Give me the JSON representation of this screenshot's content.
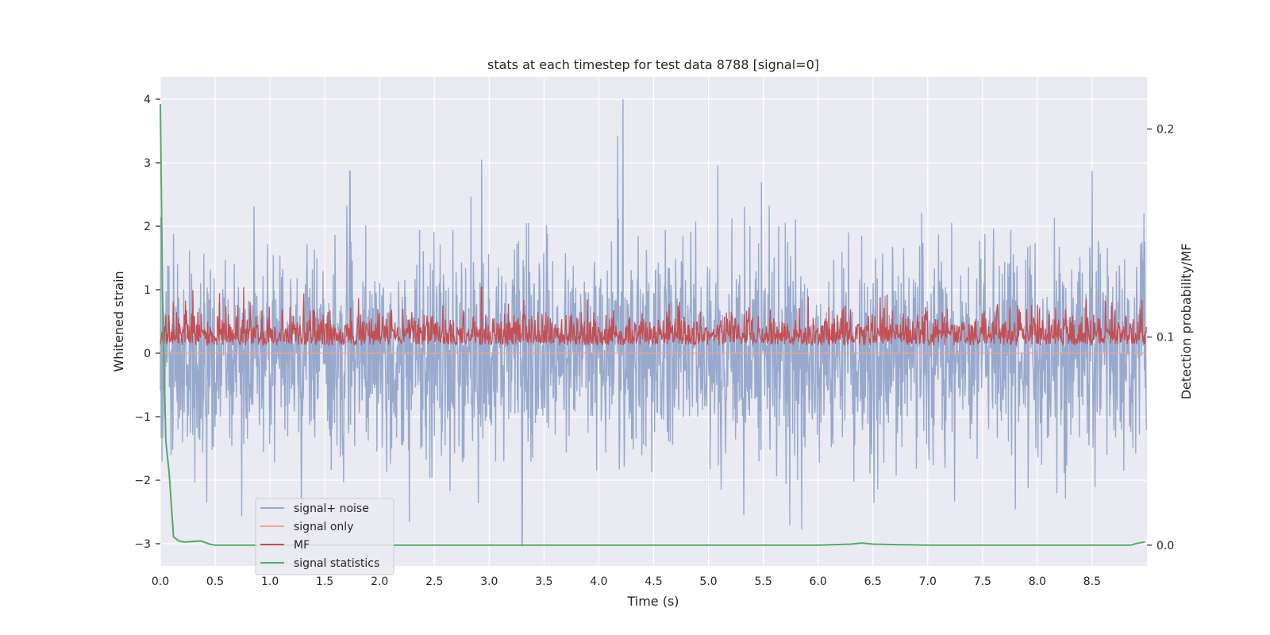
{
  "chart_data": {
    "type": "line",
    "title": "stats at each timestep for test data 8788 [signal=0]",
    "xlabel": "Time (s)",
    "ylabel": "Whitened strain",
    "y2label": "Detection probability/MF",
    "xlim": [
      0.0,
      9.0
    ],
    "ylim": [
      -3.35,
      4.35
    ],
    "y2lim": [
      -0.01,
      0.225
    ],
    "x_ticks": [
      0.0,
      0.5,
      1.0,
      1.5,
      2.0,
      2.5,
      3.0,
      3.5,
      4.0,
      4.5,
      5.0,
      5.5,
      6.0,
      6.5,
      7.0,
      7.5,
      8.0,
      8.5
    ],
    "x_tick_labels": [
      "0.0",
      "0.5",
      "1.0",
      "1.5",
      "2.0",
      "2.5",
      "3.0",
      "3.5",
      "4.0",
      "4.5",
      "5.0",
      "5.5",
      "6.0",
      "6.5",
      "7.0",
      "7.5",
      "8.0",
      "8.5"
    ],
    "y_ticks": [
      -3,
      -2,
      -1,
      0,
      1,
      2,
      3,
      4
    ],
    "y_tick_labels": [
      "−3",
      "−2",
      "−1",
      "0",
      "1",
      "2",
      "3",
      "4"
    ],
    "y2_ticks": [
      0.0,
      0.1,
      0.2
    ],
    "y2_tick_labels": [
      "0.0",
      "0.1",
      "0.2"
    ],
    "grid": true,
    "legend_position": "lower-left",
    "colors": {
      "background": "#eaeaf2",
      "grid": "#ffffff",
      "signal_noise": "#98a9cd",
      "signal_only": "#e8a98f",
      "mf": "#c44e52",
      "signal_statistics": "#55a868"
    },
    "series": [
      {
        "name": "signal+ noise",
        "axis": "left",
        "description": "noise-like whitened strain, roughly within [-3, 4] with peak ~4.0 near t=4.22 s and trough ~-3.0 near t=3.3 s",
        "peaks": [
          [
            4.22,
            4.0
          ],
          [
            4.17,
            3.42
          ],
          [
            2.93,
            3.05
          ],
          [
            8.5,
            2.87
          ],
          [
            1.73,
            2.87
          ],
          [
            3.3,
            -3.03
          ],
          [
            5.85,
            -2.78
          ],
          [
            2.27,
            -2.66
          ]
        ]
      },
      {
        "name": "signal only",
        "axis": "left",
        "values_description": "zero signal (signal=0), flat at 0"
      },
      {
        "name": "MF",
        "axis": "right",
        "description": "matched filter output fluctuating between ~0.095 and ~0.125 on the right axis, spike ~0.124 near t=2.93 s",
        "baseline": 0.1,
        "range": [
          0.095,
          0.124
        ]
      },
      {
        "name": "signal statistics",
        "axis": "right",
        "x": [
          0.0,
          0.02,
          0.05,
          0.08,
          0.12,
          0.17,
          0.22,
          0.3,
          0.37,
          0.45,
          0.5,
          0.6,
          1.0,
          2.0,
          3.0,
          4.0,
          5.0,
          6.0,
          6.3,
          6.4,
          6.5,
          7.0,
          8.0,
          8.75,
          8.85,
          8.92,
          8.98
        ],
        "values": [
          0.212,
          0.12,
          0.05,
          0.035,
          0.004,
          0.002,
          0.0015,
          0.0018,
          0.002,
          0.0005,
          0.0,
          0.0,
          0.0,
          0.0,
          0.0,
          0.0,
          0.0,
          0.0,
          0.0005,
          0.001,
          0.0005,
          0.0,
          0.0,
          0.0,
          0.0,
          0.001,
          0.0015
        ]
      }
    ]
  }
}
